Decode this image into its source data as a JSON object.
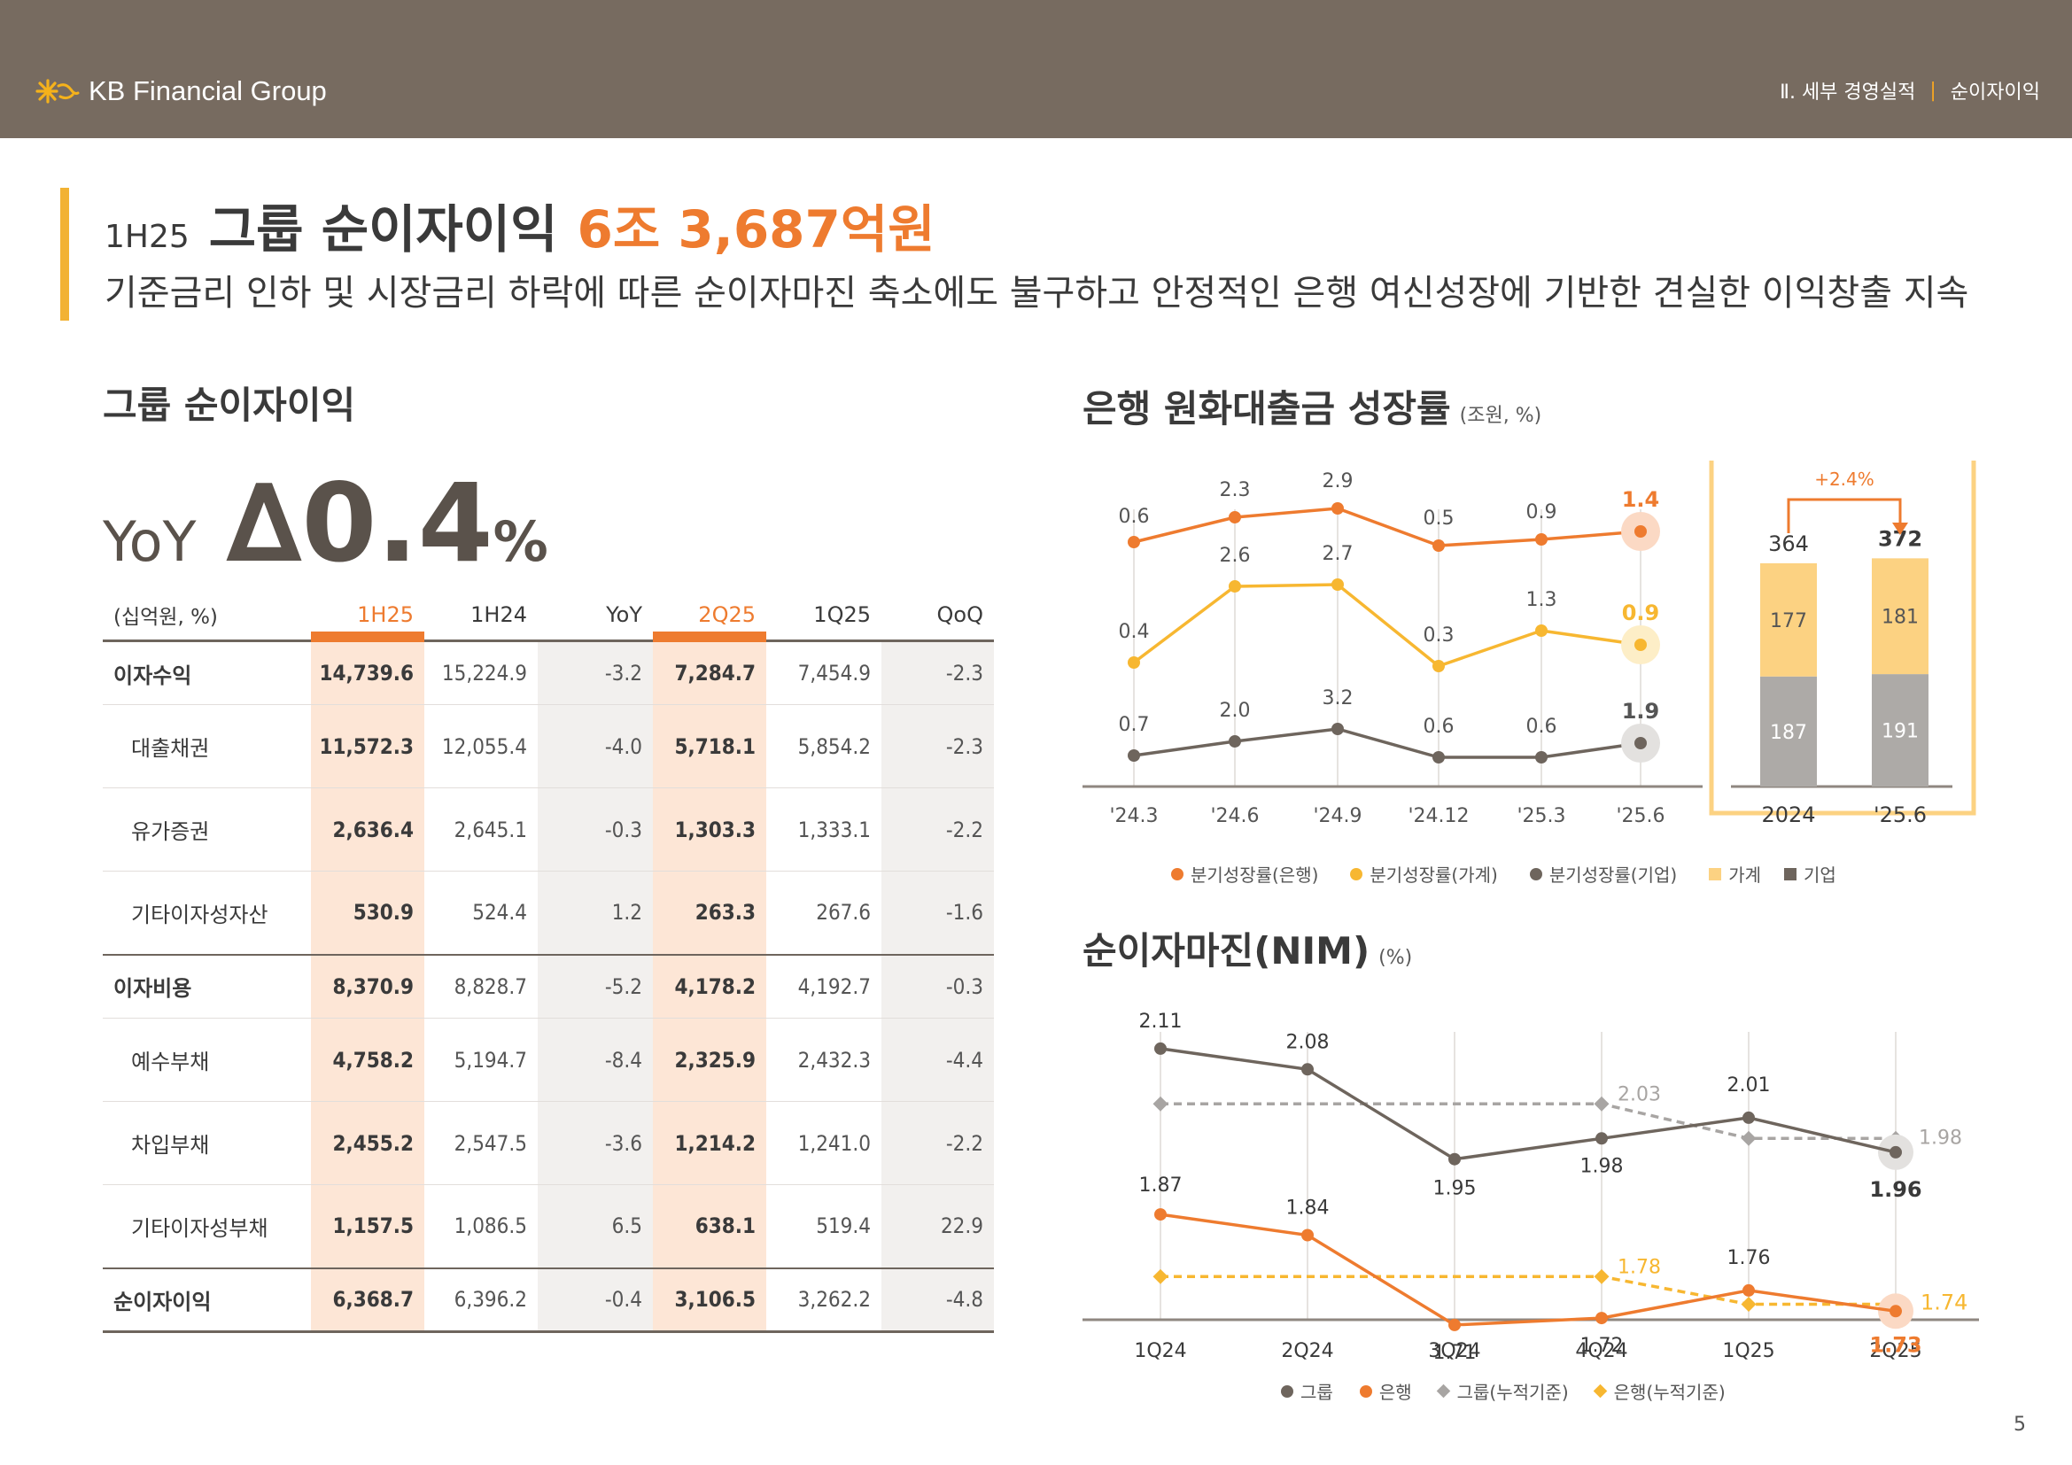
{
  "header": {
    "brand": "KB Financial Group",
    "breadcrumb_section": "Ⅱ. 세부 경영실적",
    "breadcrumb_page": "순이자이익"
  },
  "title": {
    "period": "1H25",
    "main": "그룹 순이자이익",
    "highlight": "6조 3,687억원",
    "subtitle": "기준금리 인하 및 시장금리 하락에 따른 순이자마진 축소에도 불구하고 안정적인 은행 여신성장에 기반한 견실한 이익창출 지속"
  },
  "nii_section": {
    "title": "그룹 순이자이익",
    "yoy_label": "YoY",
    "yoy_value": "∆0.4",
    "yoy_unit": "%",
    "table": {
      "unit": "(십억원, %)",
      "columns": [
        "1H25",
        "1H24",
        "YoY",
        "2Q25",
        "1Q25",
        "QoQ"
      ],
      "rows": [
        {
          "label": "이자수익",
          "type": "main",
          "values": [
            "14,739.6",
            "15,224.9",
            "-3.2",
            "7,284.7",
            "7,454.9",
            "-2.3"
          ]
        },
        {
          "label": "대출채권",
          "type": "sub",
          "values": [
            "11,572.3",
            "12,055.4",
            "-4.0",
            "5,718.1",
            "5,854.2",
            "-2.3"
          ]
        },
        {
          "label": "유가증권",
          "type": "sub",
          "values": [
            "2,636.4",
            "2,645.1",
            "-0.3",
            "1,303.3",
            "1,333.1",
            "-2.2"
          ]
        },
        {
          "label": "기타이자성자산",
          "type": "sub",
          "values": [
            "530.9",
            "524.4",
            "1.2",
            "263.3",
            "267.6",
            "-1.6"
          ]
        },
        {
          "label": "이자비용",
          "type": "main",
          "values": [
            "8,370.9",
            "8,828.7",
            "-5.2",
            "4,178.2",
            "4,192.7",
            "-0.3"
          ]
        },
        {
          "label": "예수부채",
          "type": "sub",
          "values": [
            "4,758.2",
            "5,194.7",
            "-8.4",
            "2,325.9",
            "2,432.3",
            "-4.4"
          ]
        },
        {
          "label": "차입부채",
          "type": "sub",
          "values": [
            "2,455.2",
            "2,547.5",
            "-3.6",
            "1,214.2",
            "1,241.0",
            "-2.2"
          ]
        },
        {
          "label": "기타이자성부채",
          "type": "sub",
          "values": [
            "1,157.5",
            "1,086.5",
            "6.5",
            "638.1",
            "519.4",
            "22.9"
          ]
        },
        {
          "label": "순이자이익",
          "type": "main-last",
          "values": [
            "6,368.7",
            "6,396.2",
            "-0.4",
            "3,106.5",
            "3,262.2",
            "-4.8"
          ]
        }
      ]
    }
  },
  "loan_growth": {
    "title": "은행 원화대출금 성장률",
    "unit": "(조원, %)",
    "legend": [
      "분기성장률(은행)",
      "분기성장률(가계)",
      "분기성장률(기업)",
      "가계",
      "기업"
    ],
    "colors": {
      "bank": "#ee7b2f",
      "household": "#f7b731",
      "corporate": "#6e655d",
      "household_bar": "#fcd282",
      "corporate_bar": "#adaaa7",
      "box": "#fcd282"
    }
  },
  "nim": {
    "title": "순이자마진(NIM)",
    "unit": "(%)",
    "legend": [
      "그룹",
      "은행",
      "그룹(누적기준)",
      "은행(누적기준)"
    ],
    "colors": {
      "group": "#6e655d",
      "bank": "#ee7b2f",
      "group_cum": "#a8a5a3",
      "bank_cum": "#f7b731"
    }
  },
  "chart_data": [
    {
      "type": "line",
      "title": "은행 원화대출금 성장률",
      "x": [
        "'24.3",
        "'24.6",
        "'24.9",
        "'24.12",
        "'25.3",
        "'25.6"
      ],
      "series": [
        {
          "name": "분기성장률(은행)",
          "values": [
            0.6,
            2.3,
            2.9,
            0.5,
            0.9,
            1.4
          ]
        },
        {
          "name": "분기성장률(가계)",
          "values": [
            0.4,
            2.6,
            2.7,
            0.3,
            1.3,
            0.9
          ]
        },
        {
          "name": "분기성장률(기업)",
          "values": [
            0.7,
            2.0,
            3.2,
            0.6,
            0.6,
            1.9
          ]
        }
      ]
    },
    {
      "type": "bar",
      "stacked": true,
      "categories": [
        "2024",
        "'25.6"
      ],
      "totals": [
        364,
        372
      ],
      "series": [
        {
          "name": "기업",
          "values": [
            187,
            191
          ]
        },
        {
          "name": "가계",
          "values": [
            177,
            181
          ]
        }
      ],
      "annotation": "+2.4%"
    },
    {
      "type": "line",
      "title": "순이자마진(NIM)",
      "x": [
        "1Q24",
        "2Q24",
        "3Q24",
        "4Q24",
        "1Q25",
        "2Q25"
      ],
      "series": [
        {
          "name": "그룹",
          "values": [
            2.11,
            2.08,
            1.95,
            1.98,
            2.01,
            1.96
          ]
        },
        {
          "name": "은행",
          "values": [
            1.87,
            1.84,
            1.71,
            1.72,
            1.76,
            1.73
          ]
        },
        {
          "name": "그룹(누적기준)",
          "points": [
            [
              0,
              2.03
            ],
            [
              3,
              2.03
            ],
            [
              4,
              1.98
            ],
            [
              5,
              1.98
            ]
          ],
          "labels": [
            [
              "4Q24",
              "2.03"
            ],
            [
              "2Q25",
              "1.98"
            ]
          ]
        },
        {
          "name": "은행(누적기준)",
          "points": [
            [
              0,
              1.78
            ],
            [
              3,
              1.78
            ],
            [
              4,
              1.74
            ],
            [
              5,
              1.74
            ]
          ],
          "labels": [
            [
              "4Q24",
              "1.78"
            ],
            [
              "2Q25",
              "1.74"
            ]
          ]
        }
      ]
    }
  ],
  "page_number": "5"
}
